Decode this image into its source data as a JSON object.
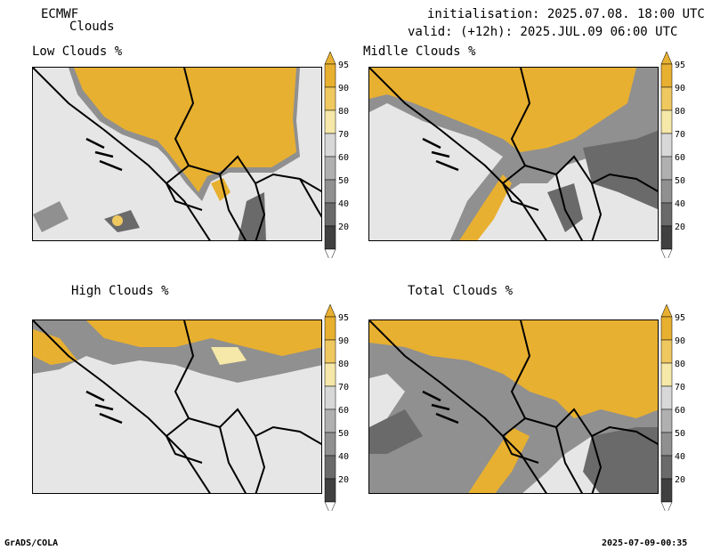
{
  "header": {
    "model": "ECMWF",
    "product": "Clouds",
    "init": "initialisation: 2025.07.08. 18:00 UTC",
    "valid": "valid: (+12h): 2025.JUL.09 06:00 UTC"
  },
  "panels": [
    {
      "title": "Low Clouds %"
    },
    {
      "title": "Midlle Clouds %"
    },
    {
      "title": "High Clouds %"
    },
    {
      "title": "Total Clouds %"
    }
  ],
  "colorbar": {
    "levels": [
      "95",
      "90",
      "80",
      "70",
      "60",
      "50",
      "40",
      "20"
    ],
    "colors": [
      "#e8b030",
      "#f0c860",
      "#f5e8a8",
      "#d8d8d8",
      "#b0b0b0",
      "#909090",
      "#6a6a6a",
      "#404040"
    ]
  },
  "footer": {
    "left": "GrADS/COLA",
    "right": "2025-07-09-00:35"
  }
}
